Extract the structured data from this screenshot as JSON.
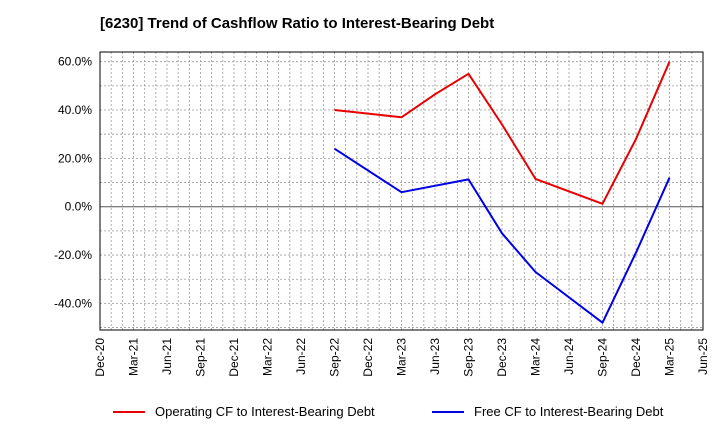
{
  "chart_data": {
    "type": "line",
    "title": "[6230]  Trend of Cashflow Ratio to Interest-Bearing Debt",
    "x_tick_labels": [
      "Dec-20",
      "Mar-21",
      "Jun-21",
      "Sep-21",
      "Dec-21",
      "Mar-22",
      "Jun-22",
      "Sep-22",
      "Dec-22",
      "Mar-23",
      "Jun-23",
      "Sep-23",
      "Dec-23",
      "Mar-24",
      "Jun-24",
      "Sep-24",
      "Dec-24",
      "Mar-25",
      "Jun-25"
    ],
    "y_tick_labels": [
      "60.0%",
      "40.0%",
      "20.0%",
      "0.0%",
      "-20.0%",
      "-40.0%"
    ],
    "y_tick_values": [
      60,
      40,
      20,
      0,
      -20,
      -40
    ],
    "ylim": [
      -51,
      64
    ],
    "grid": true,
    "legend_position": "bottom",
    "series": [
      {
        "name": "Operating CF to Interest-Bearing Debt",
        "color": "#e60000",
        "x": [
          "Sep-22",
          "Mar-23",
          "Jun-23",
          "Sep-23",
          "Dec-23",
          "Mar-24",
          "Sep-24",
          "Dec-24",
          "Mar-25"
        ],
        "values": [
          40.0,
          37.0,
          46.5,
          55.0,
          34.0,
          11.5,
          1.2,
          28.0,
          60.0
        ]
      },
      {
        "name": "Free CF to Interest-Bearing Debt",
        "color": "#0000e6",
        "x": [
          "Sep-22",
          "Mar-23",
          "Sep-23",
          "Dec-23",
          "Mar-24",
          "Sep-24",
          "Dec-24",
          "Mar-25"
        ],
        "values": [
          24.0,
          6.0,
          11.3,
          -11.0,
          -27.0,
          -48.0,
          -19.0,
          12.0
        ]
      }
    ]
  }
}
